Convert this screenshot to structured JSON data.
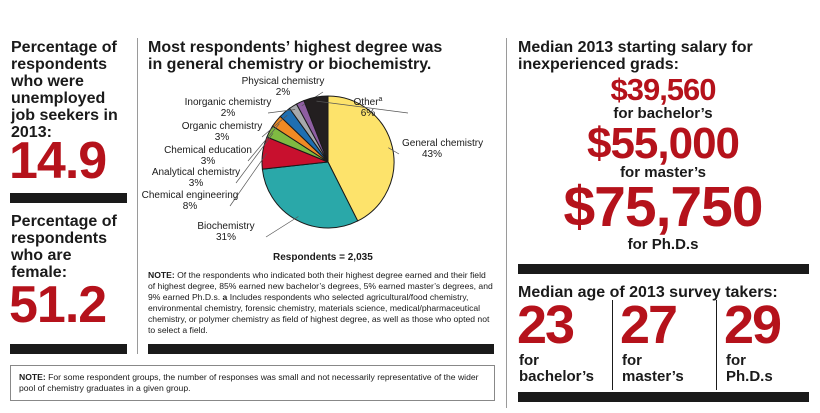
{
  "left": {
    "unemployed_label": "Percentage of respondents who were unemployed job seekers in 2013:",
    "unemployed_value": "14.9",
    "female_label": "Percentage of respondents who are female:",
    "female_value": "51.2"
  },
  "middle": {
    "title": "Most respondents’ highest degree was in general chemistry or biochemistry.",
    "respondents": "Respondents = 2,035",
    "note_head": "NOTE:",
    "note_body": "Of the respondents who indicated both their highest degree earned and their field of highest degree, 85% earned new bachelor’s degrees, 5% earned master’s degrees, and 9% earned Ph.D.s.",
    "note_a_head": "a",
    "note_a_body": "Includes respondents who selected agricultural/food chemistry, environmental chemistry, forensic chemistry, materials science, medical/pharmaceutical chemistry, or polymer chemistry as field of highest degree, as well as those who opted not to select a field."
  },
  "chart_data": {
    "type": "pie",
    "title": "Most respondents’ highest degree was in general chemistry or biochemistry.",
    "slices": [
      {
        "name": "General chemistry",
        "value": 43,
        "label": "43%",
        "color": "#fde36b"
      },
      {
        "name": "Biochemistry",
        "value": 31,
        "label": "31%",
        "color": "#2aa8a9"
      },
      {
        "name": "Chemical engineering",
        "value": 8,
        "label": "8%",
        "color": "#c8102e"
      },
      {
        "name": "Analytical chemistry",
        "value": 3,
        "label": "3%",
        "color": "#7fba42"
      },
      {
        "name": "Chemical education",
        "value": 3,
        "label": "3%",
        "color": "#f08a24"
      },
      {
        "name": "Organic chemistry",
        "value": 3,
        "label": "3%",
        "color": "#1f6fb2"
      },
      {
        "name": "Inorganic chemistry",
        "value": 2,
        "label": "2%",
        "color": "#a7a9ac"
      },
      {
        "name": "Physical chemistry",
        "value": 2,
        "label": "2%",
        "color": "#8e5ea2"
      },
      {
        "name": "Other",
        "value": 6,
        "label": "6%",
        "color": "#231f20",
        "superscript": "a"
      }
    ]
  },
  "salary": {
    "title": "Median 2013 starting salary for inexperienced grads:",
    "items": [
      {
        "value": "$39,560",
        "caption": "for bachelor’s"
      },
      {
        "value": "$55,000",
        "caption": "for master’s"
      },
      {
        "value": "$75,750",
        "caption": "for Ph.D.s"
      }
    ]
  },
  "age": {
    "title": "Median age of 2013 survey takers:",
    "items": [
      {
        "value": "23",
        "caption_1": "for",
        "caption_2": "bachelor’s"
      },
      {
        "value": "27",
        "caption_1": "for",
        "caption_2": "master’s"
      },
      {
        "value": "29",
        "caption_1": "for",
        "caption_2": "Ph.D.s"
      }
    ]
  },
  "footnote": {
    "head": "NOTE:",
    "body": "For some respondent groups, the number of responses was small and not necessarily representative of the wider pool of chemistry graduates in a given group."
  },
  "colors": {
    "accent": "#b5121b",
    "rule": "#1a1a1a"
  }
}
